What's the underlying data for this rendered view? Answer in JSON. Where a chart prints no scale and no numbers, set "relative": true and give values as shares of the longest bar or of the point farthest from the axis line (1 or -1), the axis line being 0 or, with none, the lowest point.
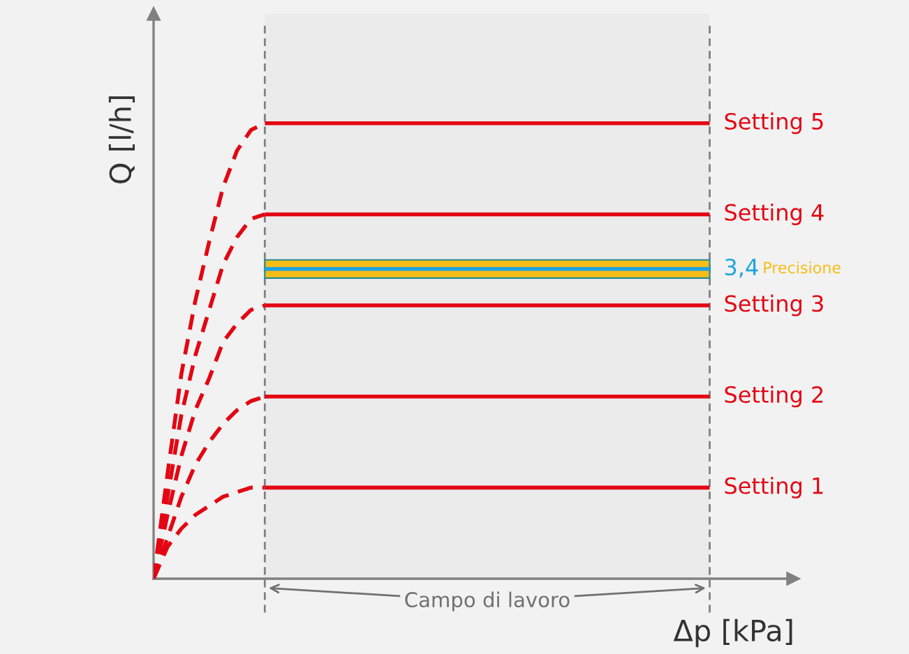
{
  "chart_data": {
    "type": "line",
    "relative": true,
    "xlabel": "Δp [kPa]",
    "ylabel": "Q [l/h]",
    "marker": "none",
    "categories": [
      null,
      null,
      null,
      null,
      null,
      null,
      null,
      null,
      null,
      null,
      null,
      null,
      null,
      null,
      null,
      null,
      null,
      null,
      null,
      null,
      null,
      null,
      null,
      null,
      null,
      null,
      null,
      null,
      null,
      null,
      null,
      null,
      null,
      null,
      null,
      null,
      null,
      null,
      null,
      null,
      null
    ],
    "series": [
      {
        "color": "#e30613",
        "line_style": "dashed",
        "values": [
          0,
          0.07,
          0.11,
          0.14,
          0.16,
          0.18,
          0.19,
          0.2,
          0.2,
          null,
          null,
          null,
          null,
          null,
          null,
          null,
          null,
          null,
          null,
          null,
          null,
          null,
          null,
          null,
          null,
          null,
          null,
          null,
          null,
          null,
          null,
          null,
          null,
          null,
          null,
          null,
          null,
          null,
          null,
          null,
          null
        ]
      },
      {
        "name": "Setting 1",
        "color": "#e30613",
        "line_style": "solid",
        "values": [
          null,
          null,
          null,
          null,
          null,
          null,
          null,
          null,
          0.2,
          0.2,
          0.2,
          0.2,
          0.2,
          0.2,
          0.2,
          0.2,
          0.2,
          0.2,
          0.2,
          0.2,
          0.2,
          0.2,
          0.2,
          0.2,
          0.2,
          0.2,
          0.2,
          0.2,
          0.2,
          0.2,
          0.2,
          0.2,
          0.2,
          0.2,
          0.2,
          0.2,
          0.2,
          0.2,
          0.2,
          0.2,
          0.2
        ]
      },
      {
        "color": "#e30613",
        "line_style": "dashed",
        "values": [
          0,
          0.09,
          0.18,
          0.25,
          0.3,
          0.34,
          0.37,
          0.39,
          0.4,
          null,
          null,
          null,
          null,
          null,
          null,
          null,
          null,
          null,
          null,
          null,
          null,
          null,
          null,
          null,
          null,
          null,
          null,
          null,
          null,
          null,
          null,
          null,
          null,
          null,
          null,
          null,
          null,
          null,
          null,
          null,
          null
        ]
      },
      {
        "name": "Setting 2",
        "color": "#e30613",
        "line_style": "solid",
        "values": [
          null,
          null,
          null,
          null,
          null,
          null,
          null,
          null,
          0.4,
          0.4,
          0.4,
          0.4,
          0.4,
          0.4,
          0.4,
          0.4,
          0.4,
          0.4,
          0.4,
          0.4,
          0.4,
          0.4,
          0.4,
          0.4,
          0.4,
          0.4,
          0.4,
          0.4,
          0.4,
          0.4,
          0.4,
          0.4,
          0.4,
          0.4,
          0.4,
          0.4,
          0.4,
          0.4,
          0.4,
          0.4,
          0.4
        ]
      },
      {
        "color": "#e30613",
        "line_style": "dashed",
        "values": [
          0,
          0.14,
          0.27,
          0.37,
          0.44,
          0.52,
          0.56,
          0.59,
          0.6,
          null,
          null,
          null,
          null,
          null,
          null,
          null,
          null,
          null,
          null,
          null,
          null,
          null,
          null,
          null,
          null,
          null,
          null,
          null,
          null,
          null,
          null,
          null,
          null,
          null,
          null,
          null,
          null,
          null,
          null,
          null,
          null
        ]
      },
      {
        "name": "Setting 3",
        "color": "#e30613",
        "line_style": "solid",
        "values": [
          null,
          null,
          null,
          null,
          null,
          null,
          null,
          null,
          0.6,
          0.6,
          0.6,
          0.6,
          0.6,
          0.6,
          0.6,
          0.6,
          0.6,
          0.6,
          0.6,
          0.6,
          0.6,
          0.6,
          0.6,
          0.6,
          0.6,
          0.6,
          0.6,
          0.6,
          0.6,
          0.6,
          0.6,
          0.6,
          0.6,
          0.6,
          0.6,
          0.6,
          0.6,
          0.6,
          0.6,
          0.6,
          0.6
        ]
      },
      {
        "color": "#e30613",
        "line_style": "dashed",
        "values": [
          0,
          0.18,
          0.36,
          0.49,
          0.59,
          0.69,
          0.75,
          0.79,
          0.8,
          null,
          null,
          null,
          null,
          null,
          null,
          null,
          null,
          null,
          null,
          null,
          null,
          null,
          null,
          null,
          null,
          null,
          null,
          null,
          null,
          null,
          null,
          null,
          null,
          null,
          null,
          null,
          null,
          null,
          null,
          null,
          null
        ]
      },
      {
        "name": "Setting 4",
        "color": "#e30613",
        "line_style": "solid",
        "values": [
          null,
          null,
          null,
          null,
          null,
          null,
          null,
          null,
          0.8,
          0.8,
          0.8,
          0.8,
          0.8,
          0.8,
          0.8,
          0.8,
          0.8,
          0.8,
          0.8,
          0.8,
          0.8,
          0.8,
          0.8,
          0.8,
          0.8,
          0.8,
          0.8,
          0.8,
          0.8,
          0.8,
          0.8,
          0.8,
          0.8,
          0.8,
          0.8,
          0.8,
          0.8,
          0.8,
          0.8,
          0.8,
          0.8
        ]
      },
      {
        "color": "#e30613",
        "line_style": "dashed",
        "values": [
          0,
          0.23,
          0.45,
          0.61,
          0.74,
          0.86,
          0.94,
          0.985,
          1.0,
          null,
          null,
          null,
          null,
          null,
          null,
          null,
          null,
          null,
          null,
          null,
          null,
          null,
          null,
          null,
          null,
          null,
          null,
          null,
          null,
          null,
          null,
          null,
          null,
          null,
          null,
          null,
          null,
          null,
          null,
          null,
          null
        ]
      },
      {
        "name": "Setting 5",
        "color": "#e30613",
        "line_style": "solid",
        "values": [
          null,
          null,
          null,
          null,
          null,
          null,
          null,
          null,
          1.0,
          1.0,
          1.0,
          1.0,
          1.0,
          1.0,
          1.0,
          1.0,
          1.0,
          1.0,
          1.0,
          1.0,
          1.0,
          1.0,
          1.0,
          1.0,
          1.0,
          1.0,
          1.0,
          1.0,
          1.0,
          1.0,
          1.0,
          1.0,
          1.0,
          1.0,
          1.0,
          1.0,
          1.0,
          1.0,
          1.0,
          1.0,
          1.0
        ]
      },
      {
        "name": "3,4",
        "color": "#1ea4df",
        "line_style": "solid",
        "values": [
          null,
          null,
          null,
          null,
          null,
          null,
          null,
          null,
          0.68,
          0.68,
          0.68,
          0.68,
          0.68,
          0.68,
          0.68,
          0.68,
          0.68,
          0.68,
          0.68,
          0.68,
          0.68,
          0.68,
          0.68,
          0.68,
          0.68,
          0.68,
          0.68,
          0.68,
          0.68,
          0.68,
          0.68,
          0.68,
          0.68,
          0.68,
          0.68,
          0.68,
          0.68,
          0.68,
          0.68,
          0.68,
          0.68
        ]
      }
    ],
    "bands": [
      {
        "axis": "y",
        "from": 0.66,
        "to": 0.7,
        "label": "Precisione",
        "color": "#f6bd16"
      }
    ],
    "annotations": [
      "Campo di lavoro"
    ]
  }
}
